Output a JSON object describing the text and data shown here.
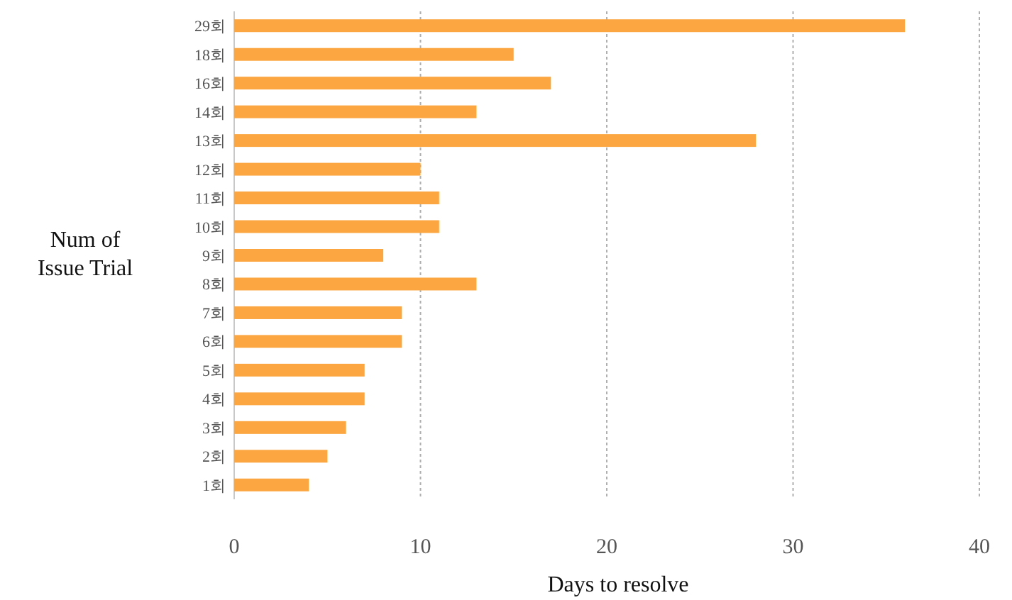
{
  "chart_data": {
    "type": "bar",
    "orientation": "horizontal",
    "xlabel": "Days to resolve",
    "ylabel": "Num of Issue Trial",
    "categories": [
      "29회",
      "18회",
      "16회",
      "14회",
      "13회",
      "12회",
      "11회",
      "10회",
      "9회",
      "8회",
      "7회",
      "6회",
      "5회",
      "4회",
      "3회",
      "2회",
      "1회"
    ],
    "values": [
      36,
      15,
      17,
      13,
      28,
      10,
      11,
      11,
      8,
      13,
      9,
      9,
      7,
      7,
      6,
      5,
      4
    ],
    "color": "#fba641",
    "xlim": [
      0,
      40
    ],
    "xticks": [
      0,
      10,
      20,
      30,
      40
    ],
    "grid": "x"
  }
}
